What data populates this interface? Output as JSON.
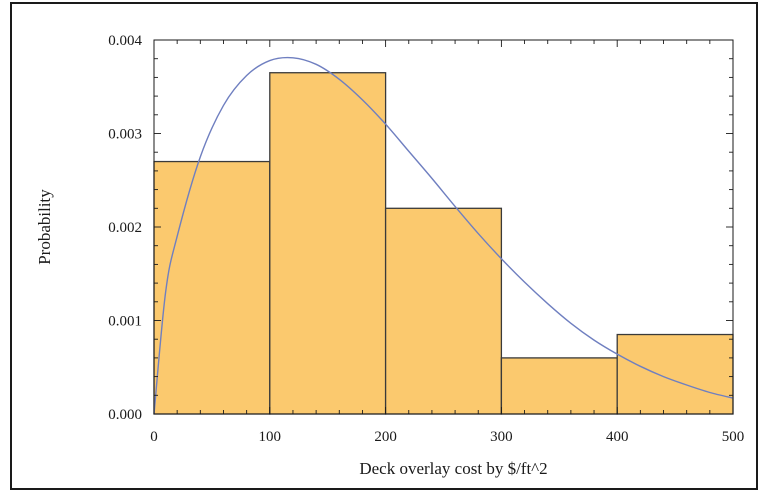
{
  "chart_data": {
    "type": "bar",
    "subtype": "histogram-with-density-curve",
    "xlabel": "Deck overlay cost by $/ft^2",
    "ylabel": "Probability",
    "xlim": [
      0,
      500
    ],
    "ylim": [
      0,
      0.004
    ],
    "x_ticks": [
      {
        "value": 0,
        "label": "0"
      },
      {
        "value": 100,
        "label": "100"
      },
      {
        "value": 200,
        "label": "200"
      },
      {
        "value": 300,
        "label": "300"
      },
      {
        "value": 400,
        "label": "400"
      },
      {
        "value": 500,
        "label": "500"
      }
    ],
    "y_ticks": [
      {
        "value": 0,
        "label": "0.000"
      },
      {
        "value": 0.001,
        "label": "0.001"
      },
      {
        "value": 0.002,
        "label": "0.002"
      },
      {
        "value": 0.003,
        "label": "0.003"
      },
      {
        "value": 0.004,
        "label": "0.004"
      }
    ],
    "bins": [
      {
        "start": 0,
        "end": 100,
        "value": 0.0027
      },
      {
        "start": 100,
        "end": 200,
        "value": 0.00365
      },
      {
        "start": 200,
        "end": 300,
        "value": 0.0022
      },
      {
        "start": 300,
        "end": 400,
        "value": 0.0006
      },
      {
        "start": 400,
        "end": 500,
        "value": 0.00085
      }
    ],
    "curve": {
      "x": [
        0,
        10,
        20,
        40,
        60,
        80,
        100,
        120,
        140,
        160,
        180,
        200,
        220,
        240,
        260,
        280,
        300,
        320,
        340,
        360,
        380,
        400,
        420,
        440,
        460,
        480,
        500
      ],
      "y": [
        0.0,
        0.0013,
        0.0019,
        0.00275,
        0.0033,
        0.00362,
        0.00378,
        0.00381,
        0.00374,
        0.00358,
        0.00336,
        0.0031,
        0.00281,
        0.00252,
        0.00222,
        0.00193,
        0.00166,
        0.00141,
        0.00118,
        0.00097,
        0.00079,
        0.00064,
        0.00051,
        0.0004,
        0.00031,
        0.00023,
        0.00017
      ]
    },
    "grid": false,
    "colors": {
      "bar_fill": "#fbc96e",
      "bar_stroke": "#3a3a3a",
      "curve": "#6f7fc0",
      "axis": "#1a1a1a"
    }
  }
}
